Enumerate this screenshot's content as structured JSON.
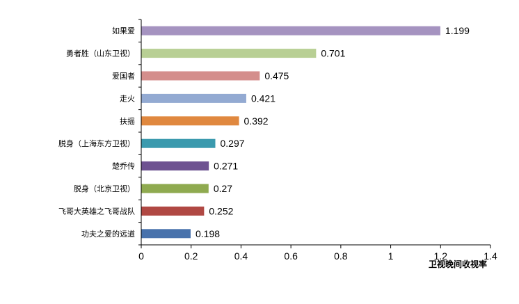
{
  "chart_data": {
    "type": "bar",
    "orientation": "horizontal",
    "categories": [
      "如果爱",
      "勇者胜（山东卫视）",
      "爱国者",
      "走火",
      "扶摇",
      "脱身（上海东方卫视）",
      "楚乔传",
      "脱身（北京卫视）",
      "飞哥大英雄之飞哥战队",
      "功夫之爱的远道"
    ],
    "values": [
      1.199,
      0.701,
      0.475,
      0.421,
      0.392,
      0.297,
      0.271,
      0.27,
      0.252,
      0.198
    ],
    "value_labels": [
      "1.199",
      "0.701",
      "0.475",
      "0.421",
      "0.392",
      "0.297",
      "0.271",
      "0.27",
      "0.252",
      "0.198"
    ],
    "colors": [
      "#A593C0",
      "#B8CF94",
      "#D48E8C",
      "#93AAD2",
      "#E0883F",
      "#3B9AAE",
      "#6E5291",
      "#8FAA50",
      "#B04843",
      "#4872AC"
    ],
    "xlim": [
      0,
      1.4
    ],
    "xticks": [
      "0",
      "0.2",
      "0.4",
      "0.6",
      "0.8",
      "1",
      "1.2",
      "1.4"
    ],
    "xtick_values": [
      0,
      0.2,
      0.4,
      0.6,
      0.8,
      1,
      1.2,
      1.4
    ],
    "xlabel": "卫视晚间收视率",
    "ylabel": "",
    "title": "",
    "grid": false,
    "legend": "none"
  }
}
